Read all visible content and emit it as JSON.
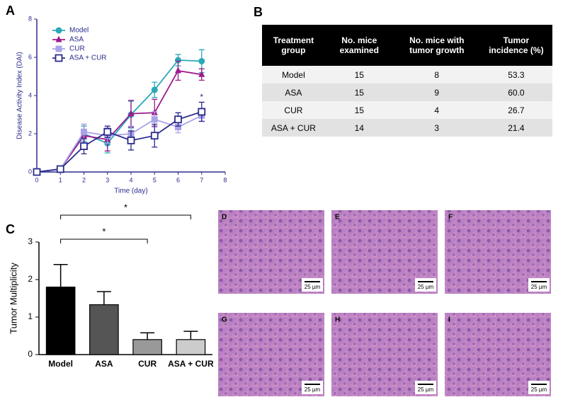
{
  "chart_data": [
    {
      "type": "line",
      "panel": "A",
      "x_label": "Time (day)",
      "y_label": "Disease Activity Index (DAI)",
      "x": [
        0,
        1,
        2,
        3,
        4,
        5,
        6,
        7
      ],
      "xlim": [
        0,
        8
      ],
      "xticks": [
        0,
        1,
        2,
        3,
        4,
        5,
        6,
        7,
        8
      ],
      "ylim": [
        0,
        8
      ],
      "yticks": [
        0,
        2,
        4,
        6,
        8
      ],
      "legend": "upper-left",
      "series": [
        {
          "name": "Model",
          "color": "#2aa9b8",
          "marker": "circle",
          "values": [
            0,
            0.15,
            2.0,
            1.5,
            3.0,
            4.3,
            5.85,
            5.8
          ],
          "errors": [
            0,
            0.1,
            0.4,
            0.5,
            0.7,
            0.4,
            0.3,
            0.6
          ]
        },
        {
          "name": "ASA",
          "color": "#9b1c8c",
          "marker": "triangle",
          "values": [
            0,
            0.15,
            1.9,
            1.7,
            3.05,
            3.1,
            5.3,
            5.1
          ],
          "errors": [
            0,
            0.1,
            0.6,
            0.6,
            0.7,
            0.7,
            0.5,
            0.3
          ]
        },
        {
          "name": "CUR",
          "color": "#a9a4e8",
          "marker": "square",
          "values": [
            0,
            0.15,
            2.1,
            1.9,
            2.0,
            2.75,
            2.35,
            2.95
          ],
          "errors": [
            0,
            0.1,
            0.4,
            0.4,
            0.4,
            0.4,
            0.3,
            0.3
          ]
        },
        {
          "name": "ASA + CUR",
          "color": "#2b2b8c",
          "marker": "open-square",
          "values": [
            0,
            0.15,
            1.35,
            2.1,
            1.65,
            1.9,
            2.75,
            3.15
          ],
          "errors": [
            0,
            0.1,
            0.4,
            0.3,
            0.5,
            0.6,
            0.35,
            0.5
          ]
        }
      ],
      "annotations": [
        {
          "text": "*",
          "x": 7,
          "y": 3.9
        }
      ]
    },
    {
      "type": "bar",
      "panel": "C",
      "y_label": "Tumor Multiplicity",
      "categories": [
        "Model",
        "ASA",
        "CUR",
        "ASA + CUR"
      ],
      "values": [
        1.8,
        1.33,
        0.4,
        0.4
      ],
      "errors": [
        0.6,
        0.35,
        0.18,
        0.22
      ],
      "colors": [
        "#000000",
        "#555555",
        "#999999",
        "#cccccc"
      ],
      "ylim": [
        0,
        3
      ],
      "yticks": [
        0,
        1,
        2,
        3
      ],
      "brackets": [
        {
          "label": "*",
          "categories": [
            "Model",
            "CUR"
          ]
        },
        {
          "label": "*",
          "categories": [
            "Model",
            "ASA + CUR"
          ]
        }
      ]
    }
  ],
  "table": {
    "panel": "B",
    "header": [
      "Treatment group",
      "No. mice examined",
      "No. mice with tumor growth",
      "Tumor incidence (%)"
    ],
    "rows": [
      [
        "Model",
        "15",
        "8",
        "53.3"
      ],
      [
        "ASA",
        "15",
        "9",
        "60.0"
      ],
      [
        "CUR",
        "15",
        "4",
        "26.7"
      ],
      [
        "ASA + CUR",
        "14",
        "3",
        "21.4"
      ]
    ]
  },
  "images": [
    {
      "label": "D",
      "scale": "25 µm"
    },
    {
      "label": "E",
      "scale": "25 µm"
    },
    {
      "label": "F",
      "scale": "25 µm"
    },
    {
      "label": "G",
      "scale": "25 µm"
    },
    {
      "label": "H",
      "scale": "25 µm"
    },
    {
      "label": "I",
      "scale": "25 µm"
    }
  ]
}
